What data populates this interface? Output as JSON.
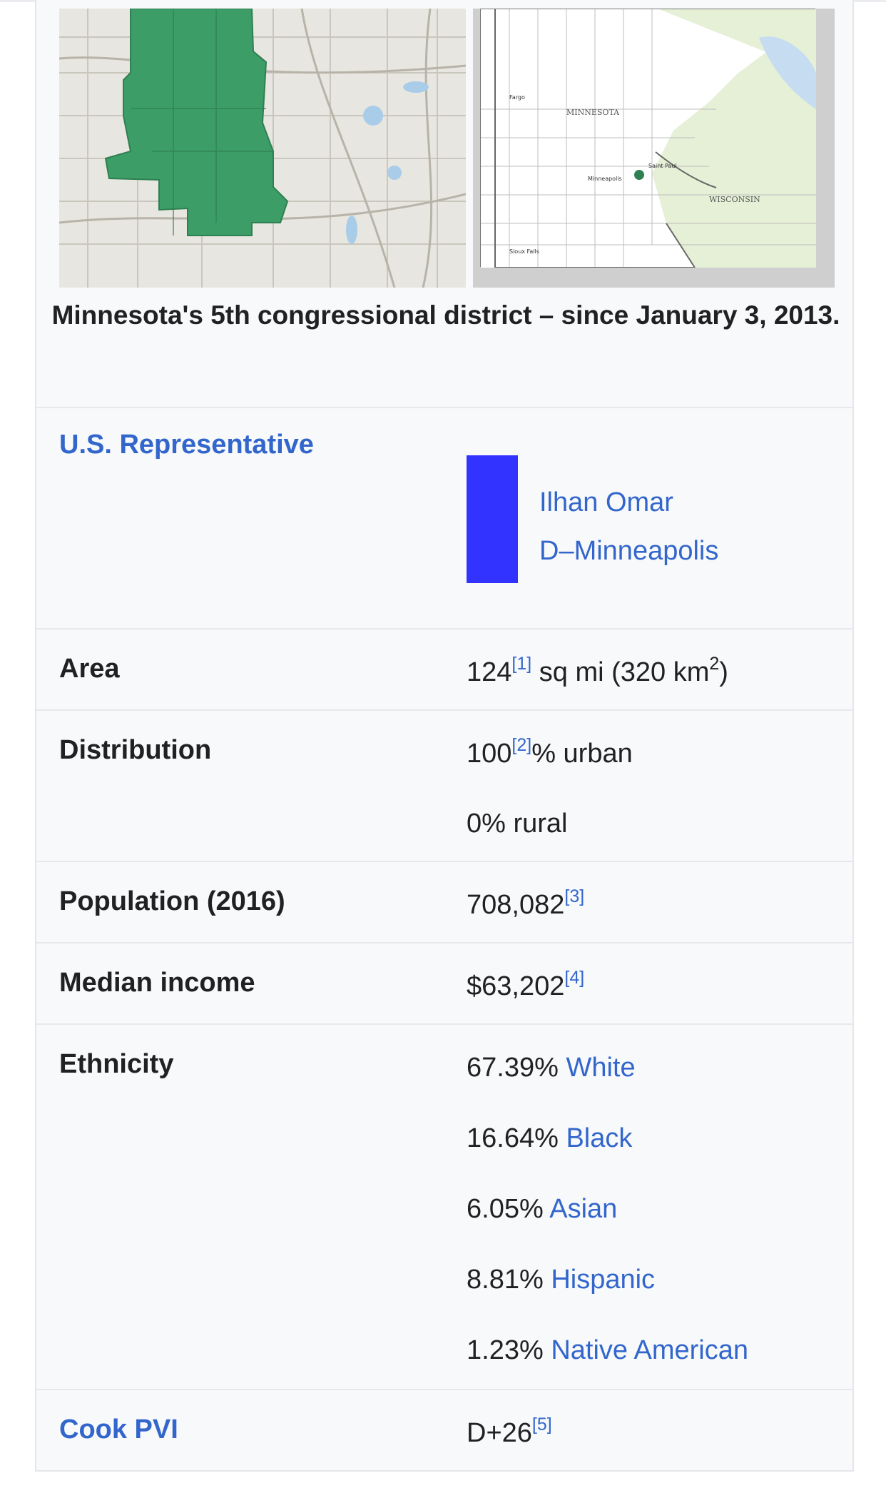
{
  "caption": "Minnesota's 5th congressional district – since January 3, 2013.",
  "map_labels": {
    "state": "MINNESOTA",
    "neighbor": "WISCONSIN",
    "city": "Minneapolis",
    "city2": "Saint Paul",
    "fargo": "Fargo",
    "sioux_falls": "Sioux Falls"
  },
  "colors": {
    "district_green": "#3c9e66",
    "party_bar": "#3333ff",
    "link": "#3366cc",
    "water": "#a9cde8"
  },
  "representative": {
    "label": "U.S. Representative",
    "name": "Ilhan Omar",
    "party_city": "D–Minneapolis"
  },
  "area": {
    "label": "Area",
    "value": "124",
    "ref": "[1]",
    "unit": " sq mi (320 km",
    "sup": "2",
    "close": ")"
  },
  "distribution": {
    "label": "Distribution",
    "urban_value": "100",
    "urban_ref": "[2]",
    "urban_text": "% urban",
    "rural": "0% rural"
  },
  "population": {
    "label": "Population (2016)",
    "value": "708,082",
    "ref": "[3]"
  },
  "income": {
    "label": "Median income",
    "value": "$63,202",
    "ref": "[4]"
  },
  "ethnicity": {
    "label": "Ethnicity",
    "items": [
      {
        "pct": "67.39% ",
        "name": "White"
      },
      {
        "pct": "16.64% ",
        "name": "Black"
      },
      {
        "pct": "6.05% ",
        "name": "Asian"
      },
      {
        "pct": "8.81% ",
        "name": "Hispanic"
      },
      {
        "pct": "1.23% ",
        "name": "Native American"
      }
    ]
  },
  "pvi": {
    "label": "Cook PVI",
    "value": "D+26",
    "ref": "[5]"
  }
}
